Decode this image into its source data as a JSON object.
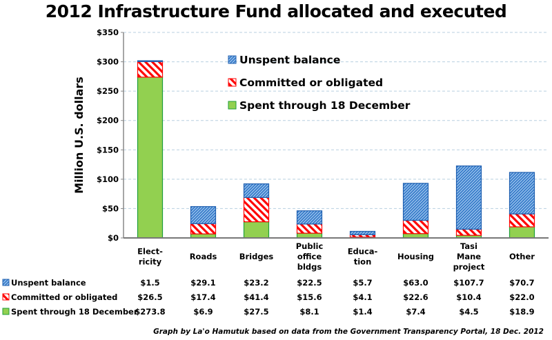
{
  "chart_data": {
    "type": "bar",
    "stacked": true,
    "title": "2012 Infrastructure Fund allocated and executed",
    "xlabel": "",
    "ylabel": "Million U.S. dollars",
    "ylim": [
      0,
      350
    ],
    "yticks": [
      0,
      50,
      100,
      150,
      200,
      250,
      300,
      350
    ],
    "ytick_labels": [
      "$0",
      "$50",
      "$100",
      "$150",
      "$200",
      "$250",
      "$300",
      "$350"
    ],
    "grid": true,
    "legend_position": "top-center",
    "categories": [
      [
        "Elect-",
        "ricity"
      ],
      [
        "Roads"
      ],
      [
        "Bridges"
      ],
      [
        "Public",
        "office",
        "bldgs"
      ],
      [
        "Educa-",
        "tion"
      ],
      [
        "Housing"
      ],
      [
        "Tasi",
        "Mane",
        "project"
      ],
      [
        "Other"
      ]
    ],
    "series": [
      {
        "name": "Spent through 18 December",
        "pattern": "solid",
        "color": "#92D050",
        "border": "#1E9E3A",
        "values": [
          273.8,
          6.9,
          27.5,
          8.1,
          1.4,
          7.4,
          4.5,
          18.9
        ],
        "labels": [
          "$273.8",
          "$6.9",
          "$27.5",
          "$8.1",
          "$1.4",
          "$7.4",
          "$4.5",
          "$18.9"
        ]
      },
      {
        "name": "Committed or obligated",
        "pattern": "wide-diagonal-red",
        "color": "#FF0000",
        "border": "#FF0000",
        "values": [
          26.5,
          17.4,
          41.4,
          15.6,
          4.1,
          22.6,
          10.4,
          22.0
        ],
        "labels": [
          "$26.5",
          "$17.4",
          "$41.4",
          "$15.6",
          "$4.1",
          "$22.6",
          "$10.4",
          "$22.0"
        ]
      },
      {
        "name": "Unspent balance",
        "pattern": "narrow-diagonal-blue",
        "color": "#2E75C6",
        "border": "#1F5FAF",
        "values": [
          1.5,
          29.1,
          23.2,
          22.5,
          5.7,
          63.0,
          107.7,
          70.7
        ],
        "labels": [
          "$1.5",
          "$29.1",
          "$23.2",
          "$22.5",
          "$5.7",
          "$63.0",
          "$107.7",
          "$70.7"
        ]
      }
    ],
    "legend_order": [
      "Unspent balance",
      "Committed or obligated",
      "Spent through 18 December"
    ],
    "table_rows": [
      {
        "series": "Unspent balance",
        "label": "Unspent balance"
      },
      {
        "series": "Committed or obligated",
        "label": "Committed or obligated"
      },
      {
        "series": "Spent through 18 December",
        "label": "Spent through 18 December"
      }
    ],
    "annotation": "Graph by La'o Hamutuk based on data from the Government Transparency Portal, 18 Dec. 2012"
  }
}
